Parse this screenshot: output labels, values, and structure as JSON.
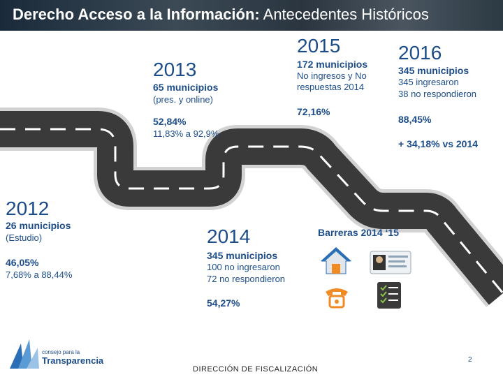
{
  "header": {
    "title_bold": "Derecho Acceso a la Información:",
    "title_rest": " Antecedentes Históricos"
  },
  "y2013": {
    "year": "2013",
    "municipios": "65 municipios",
    "note": "(pres. y online)",
    "pct": "52,84%",
    "range": "11,83% a 92,9%"
  },
  "y2015": {
    "year": "2015",
    "municipios": "172 municipios",
    "note1": "No ingresos y No",
    "note2": "respuestas 2014",
    "pct": "72,16%"
  },
  "y2016": {
    "year": "2016",
    "municipios": "345 municipios",
    "note1": "345 ingresaron",
    "note2": "38 no respondieron",
    "pct": "88,45%",
    "delta": "+ 34,18% vs 2014"
  },
  "y2012": {
    "year": "2012",
    "municipios": "26 municipios",
    "note": "(Estudio)",
    "pct": "46,05%",
    "range": "7,68% a 88,44%"
  },
  "y2014": {
    "year": "2014",
    "municipios": "345 municipios",
    "note1": "100 no ingresaron",
    "note2": "72 no respondieron",
    "pct": "54,27%"
  },
  "barreras": {
    "label": "Barreras 2014 ‘15"
  },
  "logo": {
    "line1": "consejo para la",
    "line2": "Transparencia"
  },
  "footer": {
    "text": "DIRECCIÓN DE FISCALIZACIÓN",
    "page": "2"
  },
  "colors": {
    "accent": "#1c4d8a",
    "road": "#3a3a3a",
    "road_edge": "#cfcfcf"
  },
  "icons": [
    "house-icon",
    "id-card-icon",
    "phone-icon",
    "checklist-icon",
    "logo-icon"
  ]
}
